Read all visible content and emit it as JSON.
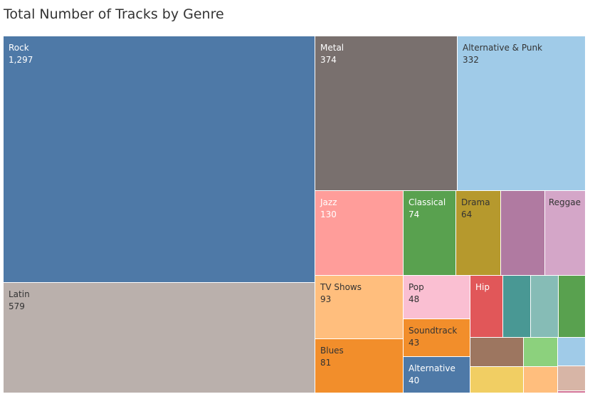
{
  "chart_data": {
    "type": "treemap",
    "title": "Total Number of Tracks by Genre",
    "values_label": "Total Number of Tracks",
    "groups": [
      {
        "name": "Rock",
        "value": 1297,
        "label": "Rock",
        "value_label": "1,297",
        "color": "#4e79a7"
      },
      {
        "name": "Latin",
        "value": 579,
        "label": "Latin",
        "value_label": "579",
        "color": "#bab0ac"
      },
      {
        "name": "Metal",
        "value": 374,
        "label": "Metal",
        "value_label": "374",
        "color": "#79706e"
      },
      {
        "name": "Alternative & Punk",
        "value": 332,
        "label": "Alternative & Punk",
        "value_label": "332",
        "color": "#a0cbe8"
      },
      {
        "name": "Jazz",
        "value": 130,
        "label": "Jazz",
        "value_label": "130",
        "color": "#ff9d9a"
      },
      {
        "name": "Classical",
        "value": 74,
        "label": "Classical",
        "value_label": "74",
        "color": "#59a14f"
      },
      {
        "name": "Drama",
        "value": 64,
        "label": "Drama",
        "value_label": "64",
        "color": "#b6992d"
      },
      {
        "name": "",
        "value": 61,
        "label": "",
        "value_label": "",
        "color": "#b07aa1"
      },
      {
        "name": "Reggae",
        "value": 58,
        "label": "Reggae",
        "value_label": "",
        "color": "#d4a6c8"
      },
      {
        "name": "TV Shows",
        "value": 93,
        "label": "TV Shows",
        "value_label": "93",
        "color": "#ffbe7d"
      },
      {
        "name": "Blues",
        "value": 81,
        "label": "Blues",
        "value_label": "81",
        "color": "#f28e2b"
      },
      {
        "name": "Pop",
        "value": 48,
        "label": "Pop",
        "value_label": "48",
        "color": "#fabfd2"
      },
      {
        "name": "Soundtrack",
        "value": 43,
        "label": "Soundtrack",
        "value_label": "43",
        "color": "#f28e2b"
      },
      {
        "name": "Alternative",
        "value": 40,
        "label": "Alternative",
        "value_label": "40",
        "color": "#4e79a7"
      },
      {
        "name": "Hip",
        "value": 35,
        "label": "Hip",
        "value_label": "",
        "color": "#e15759"
      },
      {
        "name": "",
        "value": 30,
        "label": "",
        "value_label": "",
        "color": "#499894"
      },
      {
        "name": "",
        "value": 29,
        "label": "",
        "value_label": "",
        "color": "#86bcb6"
      },
      {
        "name": "",
        "value": 28,
        "label": "",
        "value_label": "",
        "color": "#59a14f"
      },
      {
        "name": "",
        "value": 26,
        "label": "",
        "value_label": "",
        "color": "#9d7660"
      },
      {
        "name": "",
        "value": 15,
        "label": "",
        "value_label": "",
        "color": "#f1ce63"
      },
      {
        "name": "",
        "value": 14,
        "label": "",
        "value_label": "",
        "color": "#8cd17d"
      },
      {
        "name": "",
        "value": 13,
        "label": "",
        "value_label": "",
        "color": "#ffbe7d"
      },
      {
        "name": "",
        "value": 12,
        "label": "",
        "value_label": "",
        "color": "#a0cbe8"
      },
      {
        "name": "",
        "value": 11,
        "label": "",
        "value_label": "",
        "color": "#d7b5a6"
      },
      {
        "name": "",
        "value": 1,
        "label": "",
        "value_label": "",
        "color": "#d37295"
      }
    ]
  }
}
